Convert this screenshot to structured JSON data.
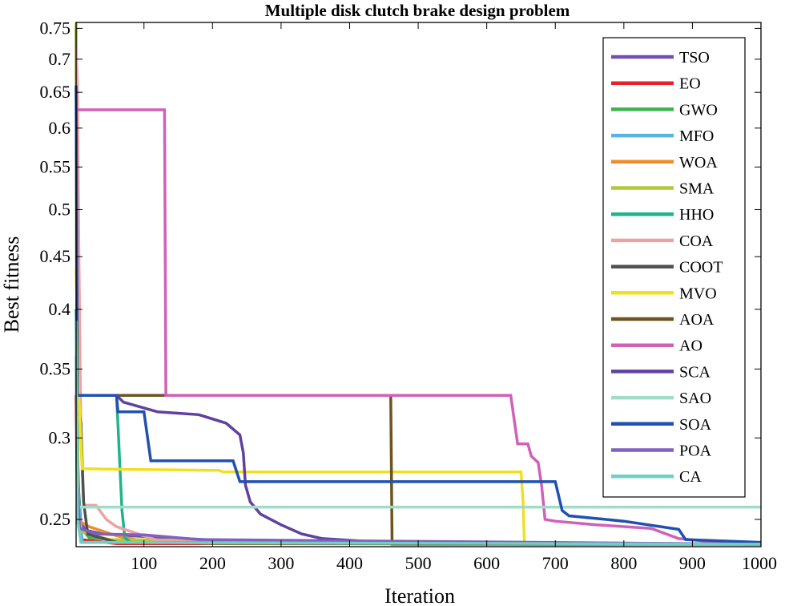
{
  "chart_data": {
    "type": "line",
    "title": "Multiple disk clutch brake design problem",
    "xlabel": "Iteration",
    "ylabel": "Best fitness",
    "xlim": [
      1,
      1000
    ],
    "ylim": [
      0.2352,
      0.76
    ],
    "y_scale": "log",
    "grid": false,
    "legend_position": "top-right",
    "xticks": [
      "100",
      "200",
      "300",
      "400",
      "500",
      "600",
      "700",
      "800",
      "900",
      "1000"
    ],
    "yticks": [
      "0.25",
      "0.3",
      "0.35",
      "0.4",
      "0.45",
      "0.5",
      "0.55",
      "0.6",
      "0.65",
      "0.7",
      "0.75"
    ],
    "series": [
      {
        "name": "TSO",
        "color": "#7050b0",
        "points": [
          [
            1,
            0.33
          ],
          [
            3,
            0.29
          ],
          [
            5,
            0.265
          ],
          [
            8,
            0.248
          ],
          [
            15,
            0.244
          ],
          [
            40,
            0.242
          ],
          [
            80,
            0.241
          ],
          [
            160,
            0.2395
          ],
          [
            240,
            0.238
          ],
          [
            420,
            0.2368
          ],
          [
            1000,
            0.2365
          ]
        ]
      },
      {
        "name": "EO",
        "color": "#e8202a",
        "points": [
          [
            1,
            0.33
          ],
          [
            3,
            0.25
          ],
          [
            8,
            0.239
          ],
          [
            60,
            0.2368
          ],
          [
            1000,
            0.2365
          ]
        ]
      },
      {
        "name": "GWO",
        "color": "#3cb44b",
        "points": [
          [
            1,
            0.75
          ],
          [
            2,
            0.36
          ],
          [
            4,
            0.27
          ],
          [
            8,
            0.245
          ],
          [
            20,
            0.24
          ],
          [
            80,
            0.238
          ],
          [
            200,
            0.237
          ],
          [
            1000,
            0.2365
          ]
        ]
      },
      {
        "name": "MFO",
        "color": "#58b4e0",
        "points": [
          [
            1,
            0.4
          ],
          [
            3,
            0.27
          ],
          [
            10,
            0.2375
          ],
          [
            1000,
            0.2365
          ]
        ]
      },
      {
        "name": "WOA",
        "color": "#f08c2a",
        "points": [
          [
            1,
            0.25
          ],
          [
            20,
            0.246
          ],
          [
            60,
            0.241
          ],
          [
            100,
            0.238
          ],
          [
            1000,
            0.2365
          ]
        ]
      },
      {
        "name": "SMA",
        "color": "#b4c83c",
        "points": [
          [
            1,
            0.76
          ],
          [
            2,
            0.34
          ],
          [
            4,
            0.25
          ],
          [
            10,
            0.243
          ],
          [
            50,
            0.239
          ],
          [
            1000,
            0.2365
          ]
        ]
      },
      {
        "name": "HHO",
        "color": "#20b48c",
        "points": [
          [
            1,
            0.4
          ],
          [
            5,
            0.33
          ],
          [
            60,
            0.33
          ],
          [
            62,
            0.31
          ],
          [
            65,
            0.28
          ],
          [
            68,
            0.255
          ],
          [
            72,
            0.24
          ],
          [
            80,
            0.2375
          ],
          [
            1000,
            0.2365
          ]
        ]
      },
      {
        "name": "COA",
        "color": "#f0a0a0",
        "points": [
          [
            1,
            0.72
          ],
          [
            3,
            0.66
          ],
          [
            5,
            0.46
          ],
          [
            8,
            0.3
          ],
          [
            12,
            0.258
          ],
          [
            30,
            0.258
          ],
          [
            45,
            0.25
          ],
          [
            60,
            0.246
          ],
          [
            120,
            0.2385
          ],
          [
            1000,
            0.2365
          ]
        ]
      },
      {
        "name": "COOT",
        "color": "#505050",
        "points": [
          [
            1,
            0.32
          ],
          [
            5,
            0.32
          ],
          [
            8,
            0.31
          ],
          [
            12,
            0.26
          ],
          [
            18,
            0.242
          ],
          [
            60,
            0.2375
          ],
          [
            1000,
            0.2365
          ]
        ]
      },
      {
        "name": "MVO",
        "color": "#f0e020",
        "points": [
          [
            1,
            0.44
          ],
          [
            5,
            0.33
          ],
          [
            10,
            0.28
          ],
          [
            210,
            0.279
          ],
          [
            215,
            0.278
          ],
          [
            400,
            0.278
          ],
          [
            650,
            0.278
          ],
          [
            653,
            0.26
          ],
          [
            655,
            0.2365
          ],
          [
            1000,
            0.2365
          ]
        ]
      },
      {
        "name": "AOA",
        "color": "#6e5420",
        "points": [
          [
            1,
            0.33
          ],
          [
            130,
            0.33
          ],
          [
            460,
            0.33
          ],
          [
            462,
            0.2365
          ],
          [
            1000,
            0.2365
          ]
        ]
      },
      {
        "name": "AO",
        "color": "#d060b8",
        "points": [
          [
            1,
            0.625
          ],
          [
            130,
            0.625
          ],
          [
            132,
            0.33
          ],
          [
            635,
            0.33
          ],
          [
            645,
            0.296
          ],
          [
            660,
            0.296
          ],
          [
            665,
            0.288
          ],
          [
            675,
            0.284
          ],
          [
            680,
            0.27
          ],
          [
            685,
            0.25
          ],
          [
            700,
            0.249
          ],
          [
            760,
            0.247
          ],
          [
            840,
            0.245
          ],
          [
            880,
            0.2395
          ],
          [
            940,
            0.2375
          ],
          [
            1000,
            0.2365
          ]
        ]
      },
      {
        "name": "SCA",
        "color": "#6040a0",
        "points": [
          [
            1,
            0.33
          ],
          [
            60,
            0.33
          ],
          [
            70,
            0.325
          ],
          [
            120,
            0.318
          ],
          [
            180,
            0.316
          ],
          [
            220,
            0.31
          ],
          [
            240,
            0.302
          ],
          [
            245,
            0.29
          ],
          [
            248,
            0.27
          ],
          [
            255,
            0.26
          ],
          [
            270,
            0.253
          ],
          [
            300,
            0.247
          ],
          [
            330,
            0.242
          ],
          [
            360,
            0.2395
          ],
          [
            450,
            0.2375
          ],
          [
            1000,
            0.2365
          ]
        ]
      },
      {
        "name": "SAO",
        "color": "#a0dcc8",
        "points": [
          [
            1,
            0.39
          ],
          [
            3,
            0.26
          ],
          [
            5,
            0.257
          ],
          [
            1000,
            0.257
          ]
        ]
      },
      {
        "name": "SOA",
        "color": "#2050b0",
        "points": [
          [
            1,
            0.66
          ],
          [
            3,
            0.33
          ],
          [
            60,
            0.33
          ],
          [
            62,
            0.318
          ],
          [
            100,
            0.318
          ],
          [
            110,
            0.285
          ],
          [
            230,
            0.285
          ],
          [
            240,
            0.272
          ],
          [
            600,
            0.272
          ],
          [
            700,
            0.272
          ],
          [
            710,
            0.255
          ],
          [
            720,
            0.252
          ],
          [
            800,
            0.249
          ],
          [
            880,
            0.2445
          ],
          [
            890,
            0.239
          ],
          [
            1000,
            0.2375
          ]
        ]
      },
      {
        "name": "POA",
        "color": "#8060c0",
        "points": [
          [
            1,
            0.36
          ],
          [
            3,
            0.27
          ],
          [
            6,
            0.245
          ],
          [
            30,
            0.242
          ],
          [
            100,
            0.2415
          ],
          [
            180,
            0.239
          ],
          [
            1000,
            0.2365
          ]
        ]
      },
      {
        "name": "CA",
        "color": "#70cfc4",
        "points": [
          [
            1,
            0.39
          ],
          [
            3,
            0.25
          ],
          [
            8,
            0.2375
          ],
          [
            1000,
            0.2365
          ]
        ]
      }
    ]
  }
}
